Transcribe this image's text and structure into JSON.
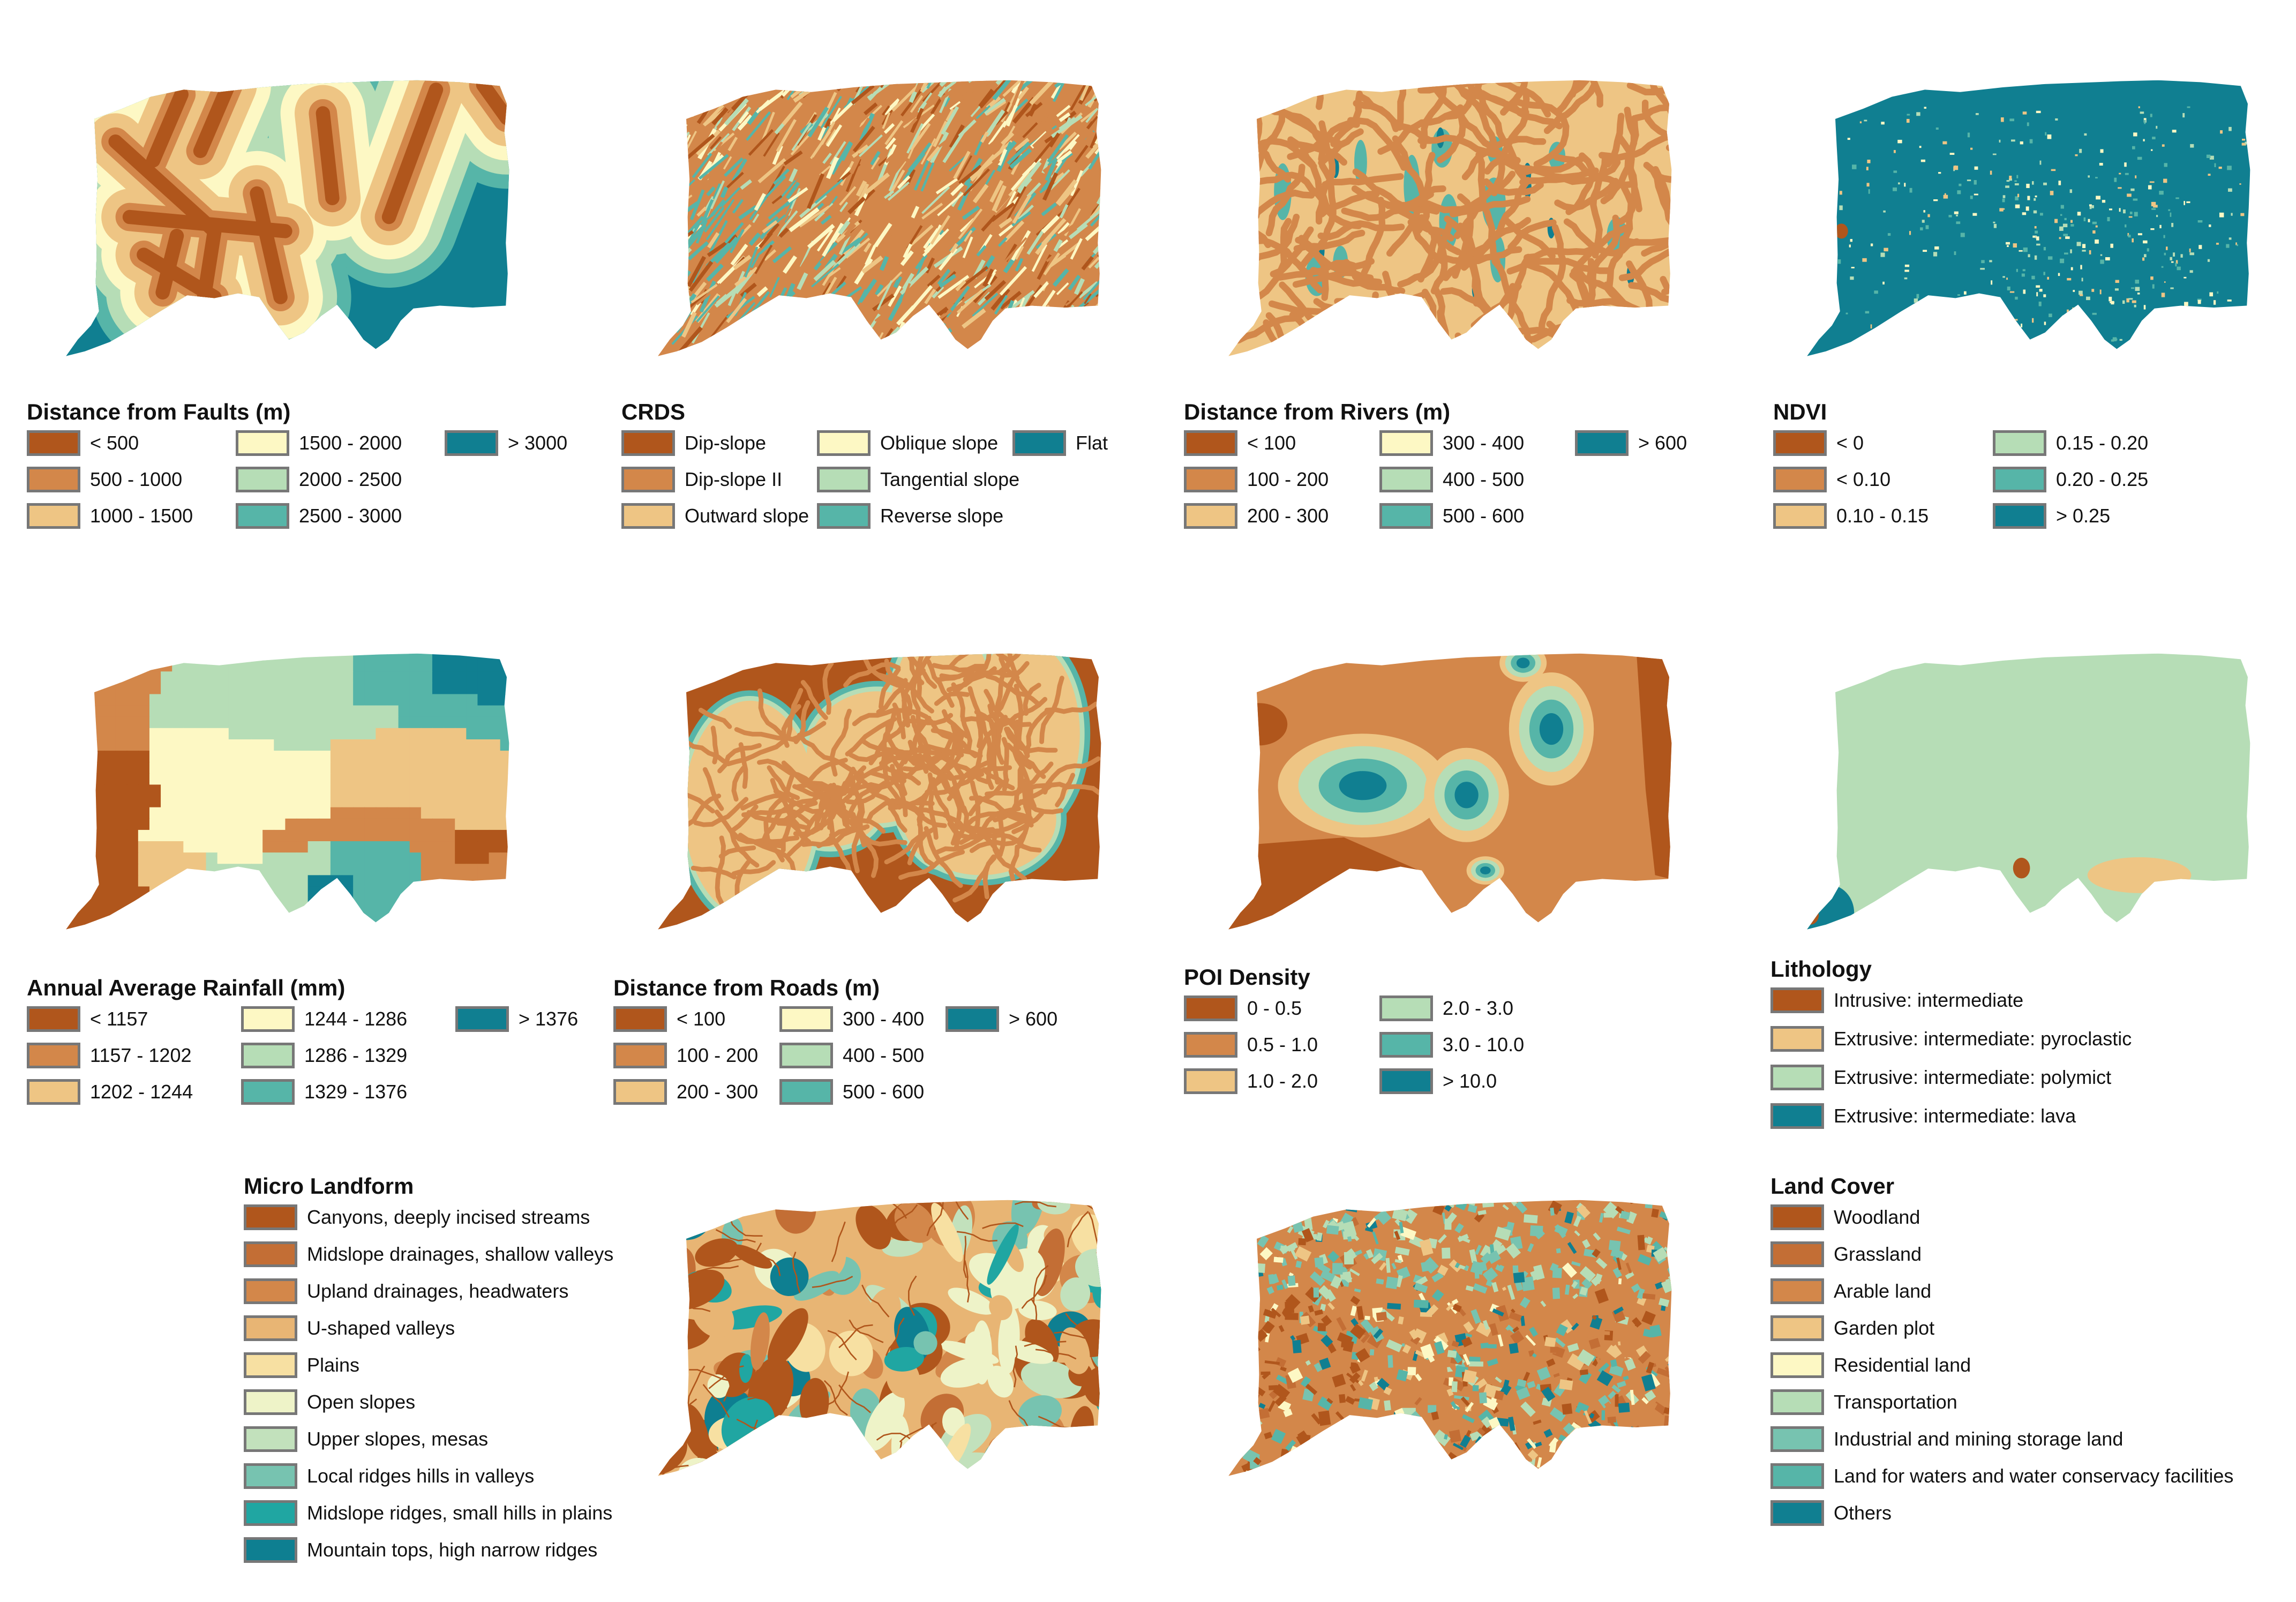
{
  "palette": {
    "c1": "#b0561c",
    "c2": "#d3874a",
    "c3": "#eec584",
    "c4": "#fdf8c4",
    "c5": "#b6ddb6",
    "c6": "#56b5a8",
    "c7": "#107f91",
    "g1": "#b0561c",
    "g2": "#c36e35",
    "g3": "#d3874a",
    "g4": "#e8b574",
    "g5": "#f7e0a2",
    "g6": "#eef3c8",
    "g7": "#c2e1bc",
    "g8": "#77c3b0",
    "g9": "#20a6a2",
    "g10": "#0e7f91"
  },
  "maps": [
    {
      "id": "faults",
      "title": "Distance from Faults (m)",
      "legend": [
        {
          "label": "< 500",
          "color": "c1"
        },
        {
          "label": "500 - 1000",
          "color": "c2"
        },
        {
          "label": "1000 - 1500",
          "color": "c3"
        },
        {
          "label": "1500 - 2000",
          "color": "c4"
        },
        {
          "label": "2000 - 2500",
          "color": "c5"
        },
        {
          "label": "2500 - 3000",
          "color": "c6"
        },
        {
          "label": "> 3000",
          "color": "c7"
        }
      ]
    },
    {
      "id": "crds",
      "title": "CRDS",
      "legend": [
        {
          "label": "Dip-slope",
          "color": "c1"
        },
        {
          "label": "Dip-slope II",
          "color": "c2"
        },
        {
          "label": "Outward slope",
          "color": "c3"
        },
        {
          "label": "Oblique slope",
          "color": "c4"
        },
        {
          "label": "Tangential slope",
          "color": "c5"
        },
        {
          "label": "Reverse slope",
          "color": "c6"
        },
        {
          "label": "Flat",
          "color": "c7"
        }
      ]
    },
    {
      "id": "rivers",
      "title": "Distance from Rivers (m)",
      "legend": [
        {
          "label": "< 100",
          "color": "c1"
        },
        {
          "label": "100 - 200",
          "color": "c2"
        },
        {
          "label": "200 - 300",
          "color": "c3"
        },
        {
          "label": "300 - 400",
          "color": "c4"
        },
        {
          "label": "400 - 500",
          "color": "c5"
        },
        {
          "label": "500 - 600",
          "color": "c6"
        },
        {
          "label": "> 600",
          "color": "c7"
        }
      ]
    },
    {
      "id": "ndvi",
      "title": "NDVI",
      "legend": [
        {
          "label": "< 0",
          "color": "c1"
        },
        {
          "label": "< 0.10",
          "color": "c2"
        },
        {
          "label": "0.10 - 0.15",
          "color": "c3"
        },
        {
          "label": "0.15 - 0.20",
          "color": "c5"
        },
        {
          "label": "0.20 - 0.25",
          "color": "c6"
        },
        {
          "label": "> 0.25",
          "color": "c7"
        }
      ]
    },
    {
      "id": "rainfall",
      "title": "Annual Average Rainfall (mm)",
      "legend": [
        {
          "label": "< 1157",
          "color": "c1"
        },
        {
          "label": "1157 - 1202",
          "color": "c2"
        },
        {
          "label": "1202 - 1244",
          "color": "c3"
        },
        {
          "label": "1244 - 1286",
          "color": "c4"
        },
        {
          "label": "1286 - 1329",
          "color": "c5"
        },
        {
          "label": "1329 - 1376",
          "color": "c6"
        },
        {
          "label": "> 1376",
          "color": "c7"
        }
      ]
    },
    {
      "id": "roads",
      "title": "Distance from Roads (m)",
      "legend": [
        {
          "label": "< 100",
          "color": "c1"
        },
        {
          "label": "100 - 200",
          "color": "c2"
        },
        {
          "label": "200 - 300",
          "color": "c3"
        },
        {
          "label": "300 - 400",
          "color": "c4"
        },
        {
          "label": "400 - 500",
          "color": "c5"
        },
        {
          "label": "500 - 600",
          "color": "c6"
        },
        {
          "label": "> 600",
          "color": "c7"
        }
      ]
    },
    {
      "id": "poi",
      "title": "POI Density",
      "legend": [
        {
          "label": "0 - 0.5",
          "color": "c1"
        },
        {
          "label": "0.5 - 1.0",
          "color": "c2"
        },
        {
          "label": "1.0 - 2.0",
          "color": "c3"
        },
        {
          "label": "2.0 - 3.0",
          "color": "c5"
        },
        {
          "label": "3.0 - 10.0",
          "color": "c6"
        },
        {
          "label": "> 10.0",
          "color": "c7"
        }
      ]
    },
    {
      "id": "lithology",
      "title": "Lithology",
      "legend": [
        {
          "label": "Intrusive: intermediate",
          "color": "c1"
        },
        {
          "label": "Extrusive: intermediate: pyroclastic",
          "color": "c3"
        },
        {
          "label": "Extrusive: intermediate: polymict",
          "color": "c5"
        },
        {
          "label": "Extrusive: intermediate: lava",
          "color": "c7"
        }
      ]
    },
    {
      "id": "landform",
      "title": "Micro Landform",
      "legend": [
        {
          "label": "Canyons, deeply incised streams",
          "color": "g1"
        },
        {
          "label": "Midslope drainages, shallow valleys",
          "color": "g2"
        },
        {
          "label": "Upland drainages, headwaters",
          "color": "g3"
        },
        {
          "label": "U-shaped valleys",
          "color": "g4"
        },
        {
          "label": "Plains",
          "color": "g5"
        },
        {
          "label": "Open slopes",
          "color": "g6"
        },
        {
          "label": "Upper slopes, mesas",
          "color": "g7"
        },
        {
          "label": "Local ridges hills in valleys",
          "color": "g8"
        },
        {
          "label": "Midslope ridges, small hills in plains",
          "color": "g9"
        },
        {
          "label": "Mountain tops, high narrow ridges",
          "color": "g10"
        }
      ]
    },
    {
      "id": "landcover",
      "title": "Land Cover",
      "legend": [
        {
          "label": "Woodland",
          "color": "c1"
        },
        {
          "label": "Grassland",
          "color": "g2"
        },
        {
          "label": "Arable land",
          "color": "c2"
        },
        {
          "label": "Garden plot",
          "color": "c3"
        },
        {
          "label": "Residential land",
          "color": "c4"
        },
        {
          "label": "Transportation",
          "color": "c5"
        },
        {
          "label": "Industrial and mining storage land",
          "color": "g8"
        },
        {
          "label": "Land for waters and water conservacy facilities",
          "color": "c6"
        },
        {
          "label": "Others",
          "color": "c7"
        }
      ]
    }
  ]
}
